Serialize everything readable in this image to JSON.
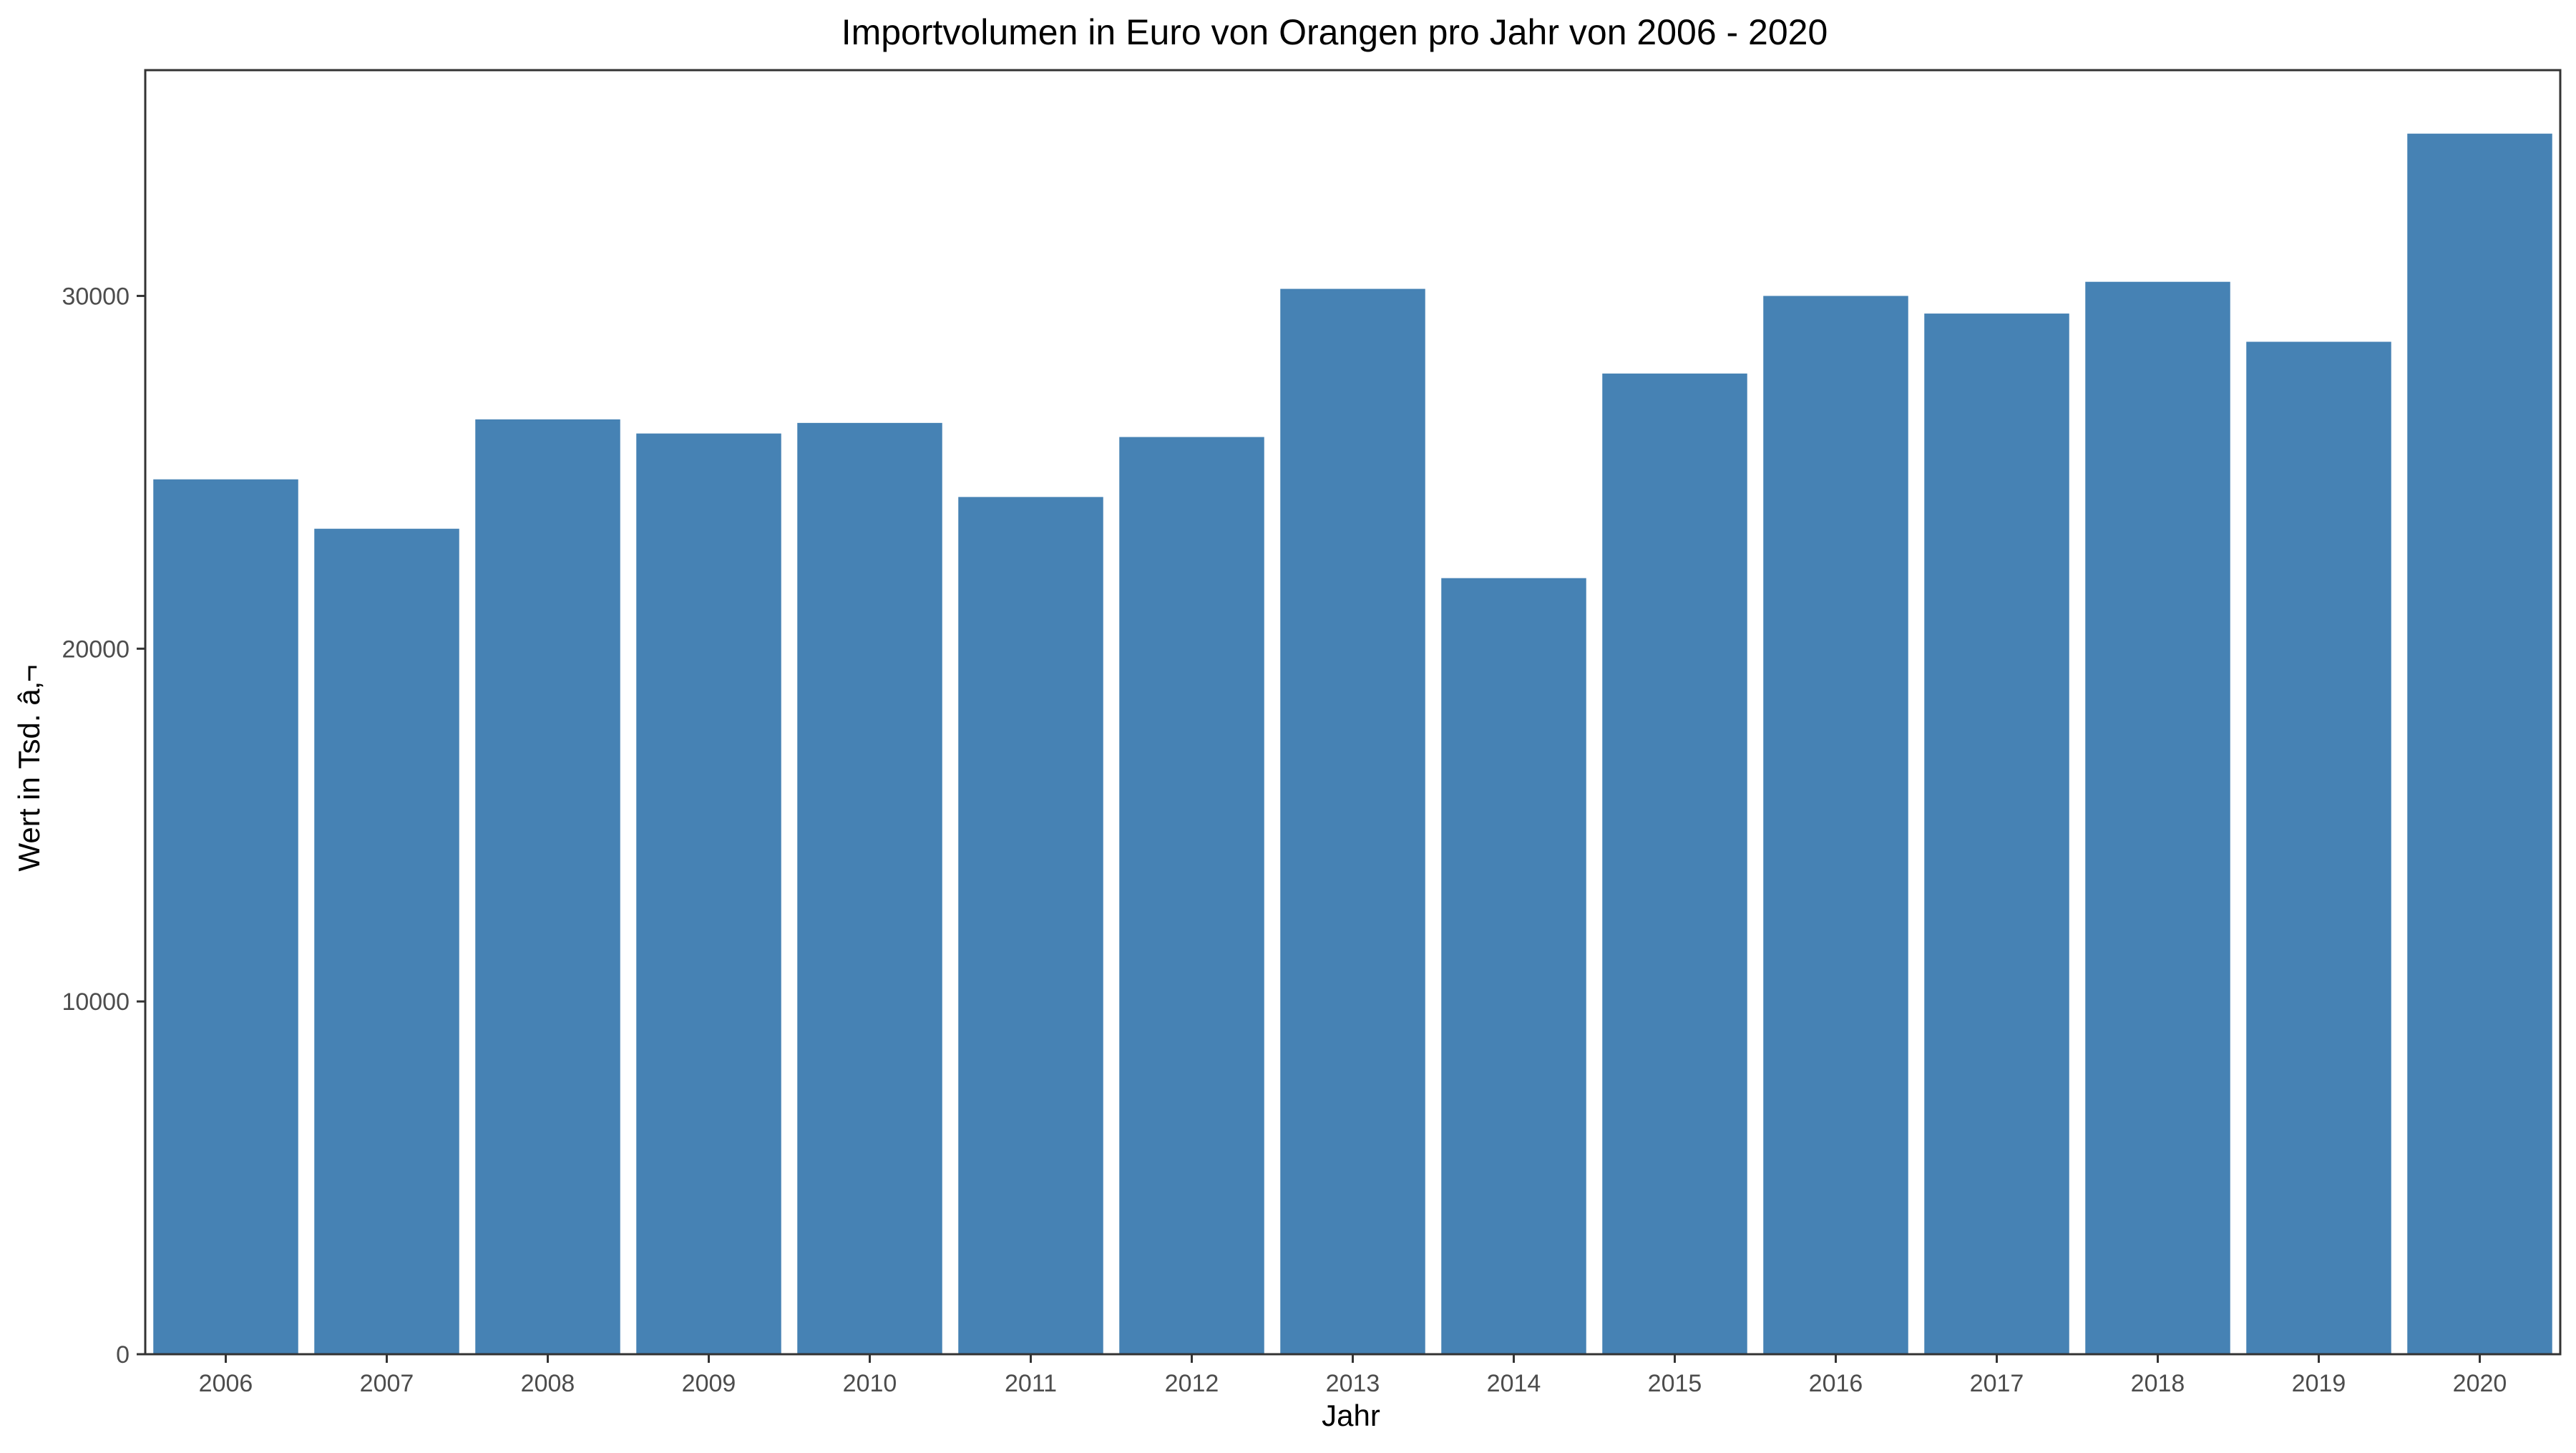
{
  "chart_data": {
    "type": "bar",
    "title": "Importvolumen in Euro von Orangen pro Jahr von 2006 - 2020",
    "xlabel": "Jahr",
    "ylabel": "Wert in Tsd. â‚¬",
    "categories": [
      "2006",
      "2007",
      "2008",
      "2009",
      "2010",
      "2011",
      "2012",
      "2013",
      "2014",
      "2015",
      "2016",
      "2017",
      "2018",
      "2019",
      "2020"
    ],
    "values": [
      24800,
      23400,
      26500,
      26100,
      26400,
      24300,
      26000,
      30200,
      22000,
      27800,
      30000,
      29500,
      30400,
      28700,
      34600
    ],
    "ylim": [
      0,
      36400
    ],
    "yticks": [
      0,
      10000,
      20000,
      30000
    ],
    "ytick_labels": [
      "0",
      "10000",
      "20000",
      "30000"
    ],
    "grid": false,
    "legend": "none",
    "bar_color": "#4682B4",
    "panel_border_color": "#333333"
  }
}
